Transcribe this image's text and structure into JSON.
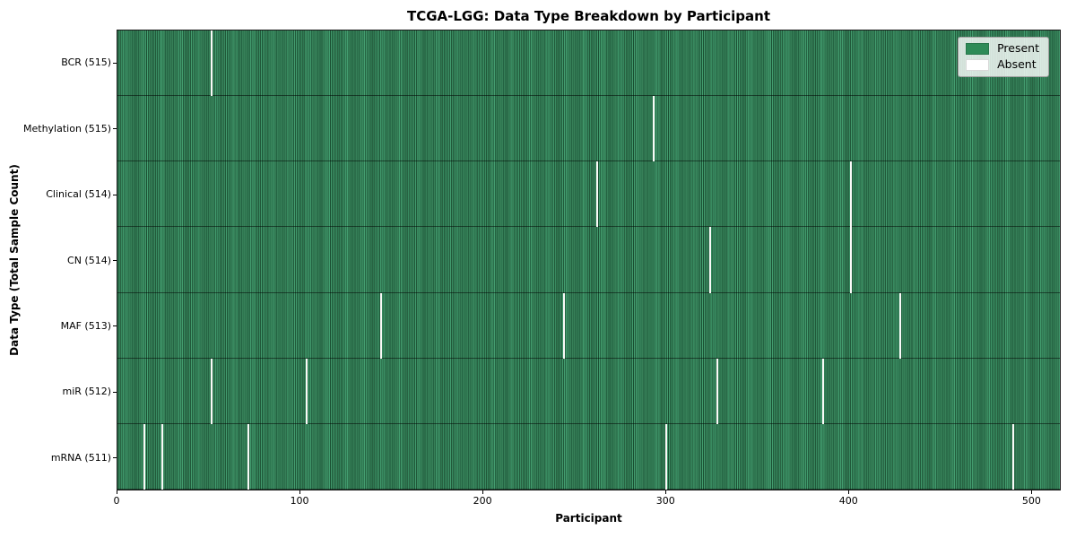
{
  "chart_data": {
    "type": "heatmap",
    "title": "TCGA-LGG: Data Type Breakdown by Participant",
    "xlabel": "Participant",
    "ylabel": "Data Type (Total Sample Count)",
    "xlim": [
      0,
      516
    ],
    "x_ticks": [
      0,
      100,
      200,
      300,
      400,
      500
    ],
    "grid": false,
    "legend_position": "upper right",
    "legend": [
      {
        "label": "Present",
        "color": "#2e8b57"
      },
      {
        "label": "Absent",
        "color": "#ffffff"
      }
    ],
    "rows": [
      {
        "data_type": "BCR",
        "label": "BCR (515)",
        "present_count": 515,
        "absent_participants": [
          51
        ]
      },
      {
        "data_type": "Methylation",
        "label": "Methylation (515)",
        "present_count": 515,
        "absent_participants": [
          293
        ]
      },
      {
        "data_type": "Clinical",
        "label": "Clinical (514)",
        "present_count": 514,
        "absent_participants": [
          262,
          401
        ]
      },
      {
        "data_type": "CN",
        "label": "CN (514)",
        "present_count": 514,
        "absent_participants": [
          324,
          401
        ]
      },
      {
        "data_type": "MAF",
        "label": "MAF (513)",
        "present_count": 513,
        "absent_participants": [
          144,
          244,
          428
        ]
      },
      {
        "data_type": "miR",
        "label": "miR (512)",
        "present_count": 512,
        "absent_participants": [
          51,
          103,
          328,
          386
        ]
      },
      {
        "data_type": "mRNA",
        "label": "mRNA (511)",
        "present_count": 511,
        "absent_participants": [
          14,
          24,
          71,
          300,
          490
        ]
      }
    ]
  },
  "colors": {
    "present": "#2e8b57",
    "present_light": "#3d9a6a",
    "present_dark": "#215e3c",
    "absent": "#ffffff",
    "spine": "#1a1a1a",
    "legend_border": "#a3a3a3"
  }
}
